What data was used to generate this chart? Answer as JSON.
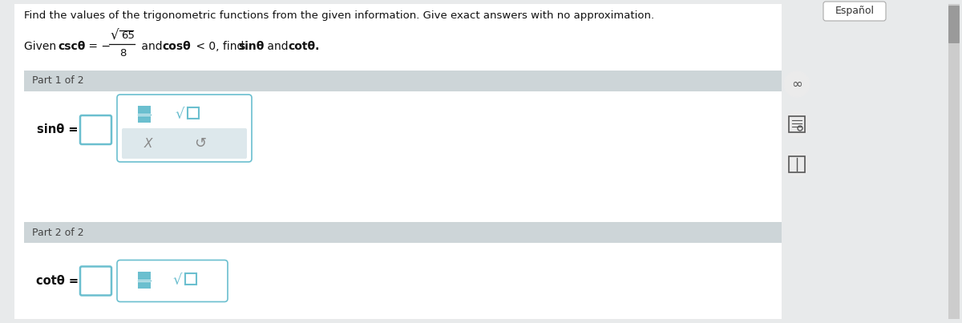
{
  "bg_color": "#e8eaeb",
  "page_bg": "#ffffff",
  "header_text": "Find the values of the trigonometric functions from the given information. Give exact answers with no approximation.",
  "part1_label": "Part 1 of 2",
  "part2_label": "Part 2 of 2",
  "espanol_label": "Español",
  "panel_header_bg": "#cdd5d8",
  "panel_inner_bg": "#ffffff",
  "input_box_color": "#6bbfcf",
  "toolbar_lower_bg": "#dde8ec",
  "icon_color": "#6bbfcf",
  "side_icon_bg": "#ebebeb",
  "side_icon_color": "#555555",
  "scrollbar_bg": "#c8cacc",
  "scrollbar_handle": "#a0a2a4",
  "header_fontsize": 9.5,
  "part_fontsize": 9,
  "label_fontsize": 10.5,
  "espanol_fontsize": 9
}
